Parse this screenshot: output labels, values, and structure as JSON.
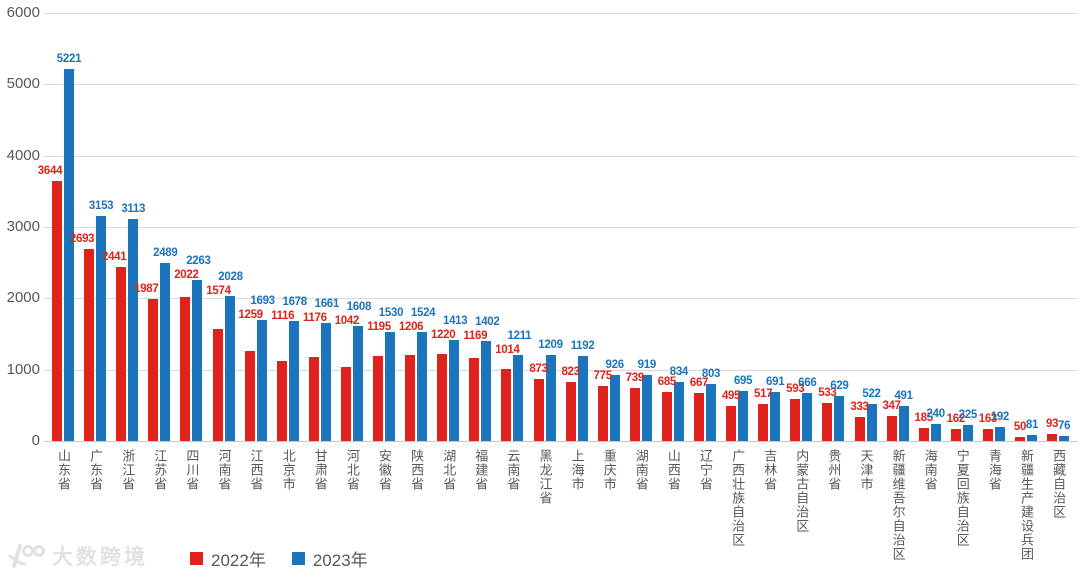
{
  "chart_data": {
    "type": "bar",
    "title": "",
    "categories": [
      "山东省",
      "广东省",
      "浙江省",
      "江苏省",
      "四川省",
      "河南省",
      "江西省",
      "北京市",
      "甘肃省",
      "河北省",
      "安徽省",
      "陕西省",
      "湖北省",
      "福建省",
      "云南省",
      "黑龙江省",
      "上海市",
      "重庆市",
      "湖南省",
      "山西省",
      "辽宁省",
      "广西壮族自治区",
      "吉林省",
      "内蒙古自治区",
      "贵州省",
      "天津市",
      "新疆维吾尔自治区",
      "海南省",
      "宁夏回族自治区",
      "青海省",
      "新疆生产建设兵团",
      "西藏自治区"
    ],
    "series": [
      {
        "name": "2022年",
        "color": "#df231b",
        "values": [
          3644,
          2693,
          2441,
          1987,
          2022,
          1574,
          1259,
          1116,
          1176,
          1042,
          1195,
          1206,
          1220,
          1169,
          1014,
          873,
          823,
          775,
          739,
          685,
          667,
          495,
          517,
          593,
          533,
          333,
          347,
          185,
          162,
          163,
          50,
          93
        ]
      },
      {
        "name": "2023年",
        "color": "#1c74bc",
        "values": [
          5221,
          3153,
          3113,
          2489,
          2263,
          2028,
          1693,
          1678,
          1661,
          1608,
          1530,
          1524,
          1413,
          1402,
          1211,
          1209,
          1192,
          926,
          919,
          834,
          803,
          695,
          691,
          666,
          629,
          522,
          491,
          240,
          225,
          192,
          81,
          76
        ]
      }
    ],
    "ylim": [
      0,
      6000
    ],
    "ytick_interval": 1000,
    "grid": true,
    "value_labels": true,
    "legend_position": "bottom",
    "axis_text_color": "#595959",
    "gridline_color": "#d9d9d9"
  },
  "legend": {
    "items": [
      {
        "label": "2022年",
        "color": "#df231b"
      },
      {
        "label": "2023年",
        "color": "#1c74bc"
      }
    ]
  },
  "watermark": {
    "text": "大数跨境"
  }
}
